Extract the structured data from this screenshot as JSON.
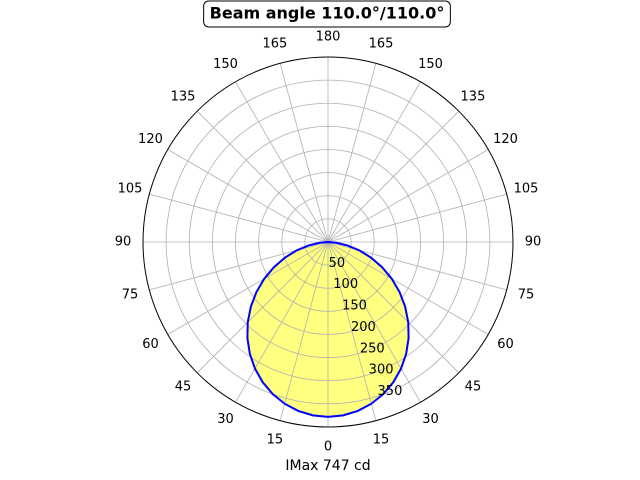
{
  "chart_data": {
    "type": "polar",
    "title": "Beam angle 110.0°/110.0°",
    "xlabel": "IMax 747 cd",
    "x": [
      -90,
      -85,
      -80,
      -75,
      -70,
      -65,
      -60,
      -55,
      -50,
      -45,
      -40,
      -35,
      -30,
      -25,
      -20,
      -15,
      -10,
      -5,
      0,
      5,
      10,
      15,
      20,
      25,
      30,
      35,
      40,
      45,
      50,
      55,
      60,
      65,
      70,
      75,
      80,
      85,
      90
    ],
    "series": [
      {
        "color": "#0000ff",
        "fill": "#ffff80",
        "values": [
          0,
          18.0,
          42.6,
          70.1,
          99.2,
          129.1,
          159.3,
          189.0,
          217.8,
          245.4,
          271.1,
          294.7,
          315.9,
          334.4,
          349.8,
          362.0,
          370.9,
          376.2,
          378,
          376.2,
          370.9,
          362.0,
          349.8,
          334.4,
          315.9,
          294.7,
          271.1,
          245.4,
          217.8,
          189.0,
          159.3,
          129.1,
          99.2,
          70.1,
          42.6,
          18.0,
          0
        ]
      }
    ],
    "rlim": [
      0,
      400
    ],
    "rticks": [
      50,
      100,
      150,
      200,
      250,
      300,
      350
    ],
    "xticks": [
      0,
      15,
      30,
      45,
      60,
      75,
      90,
      105,
      120,
      135,
      150,
      165,
      180,
      {
        "value": 195,
        "label": "165"
      },
      {
        "value": 210,
        "label": "150"
      },
      {
        "value": 225,
        "label": "135"
      },
      {
        "value": 240,
        "label": "120"
      },
      {
        "value": 255,
        "label": "105"
      },
      {
        "value": 270,
        "label": "90"
      },
      {
        "value": 285,
        "label": "75"
      },
      {
        "value": 300,
        "label": "60"
      },
      {
        "value": 315,
        "label": "45"
      },
      {
        "value": 330,
        "label": "30"
      },
      {
        "value": 345,
        "label": "15"
      }
    ],
    "grid": true
  }
}
